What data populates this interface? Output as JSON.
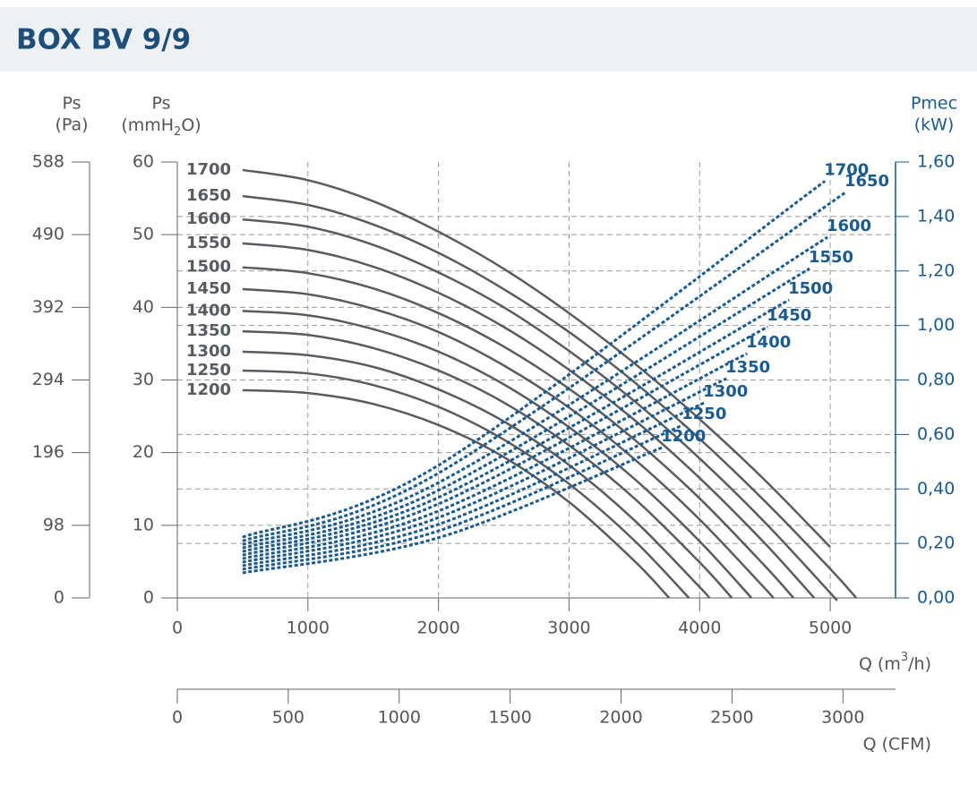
{
  "chart_data": {
    "type": "line",
    "title": "BOX BV 9/9",
    "ylabel_pa": [
      "Ps",
      "(Pa)"
    ],
    "ylabel": [
      "Ps",
      "(mmH",
      "2",
      "O)"
    ],
    "y2label": [
      "Pmec",
      "(kW)"
    ],
    "xlabel": [
      "Q (m",
      "3",
      "/h)"
    ],
    "x2label": "Q (CFM)",
    "xlim": [
      0,
      5500
    ],
    "xticks": [
      0,
      1000,
      2000,
      3000,
      4000,
      5000
    ],
    "x2lim": [
      0,
      3237
    ],
    "x2ticks": [
      0,
      500,
      1000,
      1500,
      2000,
      2500,
      3000
    ],
    "ylim": [
      0,
      60
    ],
    "yticks": [
      0,
      10,
      20,
      30,
      40,
      50,
      60
    ],
    "ypa_lim": [
      0,
      588
    ],
    "ypa_ticks": [
      0,
      98,
      196,
      294,
      392,
      490,
      588
    ],
    "y2lim": [
      0,
      1.6
    ],
    "y2ticks": [
      {
        "value": 0,
        "label": "0,00"
      },
      {
        "value": 0.2,
        "label": "0,20"
      },
      {
        "value": 0.4,
        "label": "0,40"
      },
      {
        "value": 0.6,
        "label": "0,60"
      },
      {
        "value": 0.8,
        "label": "0,80"
      },
      {
        "value": 1.0,
        "label": "1,00"
      },
      {
        "value": 1.2,
        "label": "1,20"
      },
      {
        "value": 1.4,
        "label": "1,40"
      },
      {
        "value": 1.6,
        "label": "1,60"
      }
    ],
    "grid": true,
    "series": [
      {
        "name": "1700",
        "color": "#585c61",
        "x": [
          500,
          1000,
          1500,
          2000,
          2500,
          3000,
          3500,
          4000,
          4500,
          5000
        ],
        "values": [
          58.9,
          57.5,
          54.6,
          50.4,
          45.3,
          39.2,
          32.3,
          24.6,
          16.2,
          7.0
        ]
      },
      {
        "name": "1650",
        "color": "#585c61",
        "x": [
          500,
          1000,
          1500,
          2000,
          2500,
          3000,
          3500,
          4000,
          4500,
          5000,
          5199
        ],
        "values": [
          55.3,
          54.1,
          51.4,
          47.5,
          42.5,
          36.6,
          29.7,
          21.9,
          13.3,
          4.0,
          0
        ]
      },
      {
        "name": "1600",
        "color": "#585c61",
        "x": [
          500,
          1000,
          1500,
          2000,
          2500,
          3000,
          3500,
          4000,
          4500,
          5000,
          5034
        ],
        "values": [
          52.1,
          51.1,
          48.6,
          44.8,
          40.0,
          34.0,
          27.1,
          19.2,
          10.4,
          0.7,
          0
        ]
      },
      {
        "name": "1550",
        "color": "#585c61",
        "x": [
          500,
          1000,
          1500,
          2000,
          2500,
          3000,
          3500,
          4000,
          4500,
          4877
        ],
        "values": [
          48.8,
          47.9,
          45.6,
          42.0,
          37.3,
          31.4,
          24.5,
          16.5,
          7.5,
          0
        ]
      },
      {
        "name": "1500",
        "color": "#585c61",
        "x": [
          500,
          1000,
          1500,
          2000,
          2500,
          3000,
          3500,
          4000,
          4500,
          4719
        ],
        "values": [
          45.5,
          44.7,
          42.6,
          39.2,
          34.6,
          28.8,
          21.8,
          13.7,
          4.4,
          0
        ]
      },
      {
        "name": "1450",
        "color": "#585c61",
        "x": [
          500,
          1000,
          1500,
          2000,
          2500,
          3000,
          3500,
          4000,
          4500,
          4562
        ],
        "values": [
          42.5,
          41.8,
          39.8,
          36.6,
          32.0,
          26.2,
          19.1,
          10.8,
          1.3,
          0
        ]
      },
      {
        "name": "1400",
        "color": "#585c61",
        "x": [
          500,
          1000,
          1500,
          2000,
          2500,
          3000,
          3500,
          4000,
          4397
        ],
        "values": [
          39.5,
          38.9,
          37.0,
          33.9,
          29.4,
          23.5,
          16.4,
          7.8,
          0
        ]
      },
      {
        "name": "1350",
        "color": "#585c61",
        "x": [
          500,
          1000,
          1500,
          2000,
          2500,
          3000,
          3500,
          4000,
          4247
        ],
        "values": [
          36.7,
          36.2,
          34.4,
          31.3,
          26.9,
          21.0,
          13.7,
          4.9,
          0
        ]
      },
      {
        "name": "1300",
        "color": "#585c61",
        "x": [
          500,
          1000,
          1500,
          2000,
          2500,
          3000,
          3500,
          4000,
          4075
        ],
        "values": [
          33.9,
          33.4,
          31.8,
          28.7,
          24.3,
          18.3,
          10.7,
          1.5,
          0
        ]
      },
      {
        "name": "1250",
        "color": "#585c61",
        "x": [
          500,
          1000,
          1500,
          2000,
          2500,
          3000,
          3500,
          3918
        ],
        "values": [
          31.3,
          30.9,
          29.3,
          26.3,
          21.8,
          15.7,
          7.9,
          0
        ]
      },
      {
        "name": "1200",
        "color": "#585c61",
        "x": [
          500,
          1000,
          1500,
          2000,
          2500,
          3000,
          3500,
          3767
        ],
        "values": [
          28.6,
          28.2,
          26.7,
          23.8,
          19.4,
          13.2,
          5.1,
          0
        ]
      },
      {
        "name": "1700",
        "color": "#1b5a8c",
        "axis": "y2",
        "dashed": true,
        "x": [
          500,
          2000,
          4960
        ],
        "values": [
          0.223,
          0.487,
          1.53
        ]
      },
      {
        "name": "1650",
        "color": "#1b5a8c",
        "axis": "y2",
        "dashed": true,
        "x": [
          500,
          2000,
          5116
        ],
        "values": [
          0.209,
          0.458,
          1.488
        ]
      },
      {
        "name": "1600",
        "color": "#1b5a8c",
        "axis": "y2",
        "dashed": true,
        "x": [
          500,
          2000,
          4979
        ],
        "values": [
          0.196,
          0.423,
          1.324
        ]
      },
      {
        "name": "1550",
        "color": "#1b5a8c",
        "axis": "y2",
        "dashed": true,
        "x": [
          500,
          2000,
          4842
        ],
        "values": [
          0.183,
          0.395,
          1.209
        ]
      },
      {
        "name": "1500",
        "color": "#1b5a8c",
        "axis": "y2",
        "dashed": true,
        "x": [
          500,
          2000,
          4685
        ],
        "values": [
          0.17,
          0.369,
          1.094
        ]
      },
      {
        "name": "1450",
        "color": "#1b5a8c",
        "axis": "y2",
        "dashed": true,
        "x": [
          500,
          2000,
          4521
        ],
        "values": [
          0.157,
          0.345,
          0.995
        ]
      },
      {
        "name": "1400",
        "color": "#1b5a8c",
        "axis": "y2",
        "dashed": true,
        "x": [
          500,
          2000,
          4363
        ],
        "values": [
          0.144,
          0.319,
          0.897
        ]
      },
      {
        "name": "1350",
        "color": "#1b5a8c",
        "axis": "y2",
        "dashed": true,
        "x": [
          500,
          2000,
          4205
        ],
        "values": [
          0.131,
          0.295,
          0.805
        ]
      },
      {
        "name": "1300",
        "color": "#1b5a8c",
        "axis": "y2",
        "dashed": true,
        "x": [
          500,
          2000,
          4034
        ],
        "values": [
          0.118,
          0.27,
          0.716
        ]
      },
      {
        "name": "1250",
        "color": "#1b5a8c",
        "axis": "y2",
        "dashed": true,
        "x": [
          500,
          2000,
          3870
        ],
        "values": [
          0.105,
          0.246,
          0.634
        ]
      },
      {
        "name": "1200",
        "color": "#1b5a8c",
        "axis": "y2",
        "dashed": true,
        "x": [
          500,
          2000,
          3712
        ],
        "values": [
          0.092,
          0.221,
          0.552
        ]
      }
    ]
  }
}
